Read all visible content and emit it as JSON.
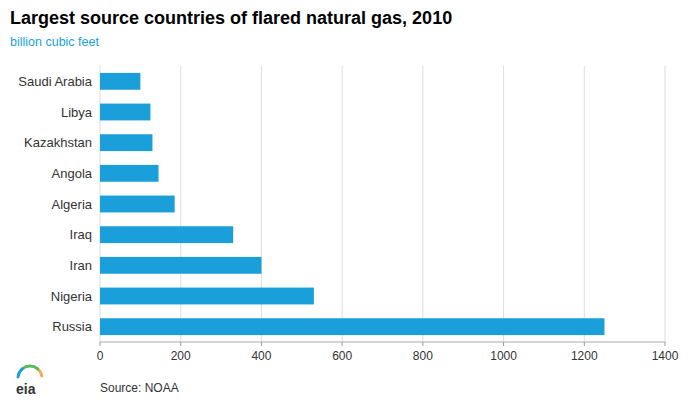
{
  "chart_data": {
    "type": "bar",
    "orientation": "horizontal",
    "title": "Largest source countries of flared natural gas, 2010",
    "subtitle": "billion cubic feet",
    "annotations": [
      "Source: NOAA",
      "eia"
    ],
    "categories": [
      "Russia",
      "Nigeria",
      "Iran",
      "Iraq",
      "Algeria",
      "Angola",
      "Kazakhstan",
      "Libya",
      "Saudi Arabia"
    ],
    "values": [
      1250,
      530,
      400,
      330,
      185,
      145,
      130,
      125,
      100
    ],
    "color": "#1a9fda",
    "xlim": [
      0,
      1400
    ],
    "xticks": [
      0,
      200,
      400,
      600,
      800,
      1000,
      1200,
      1400
    ],
    "grid": true
  }
}
